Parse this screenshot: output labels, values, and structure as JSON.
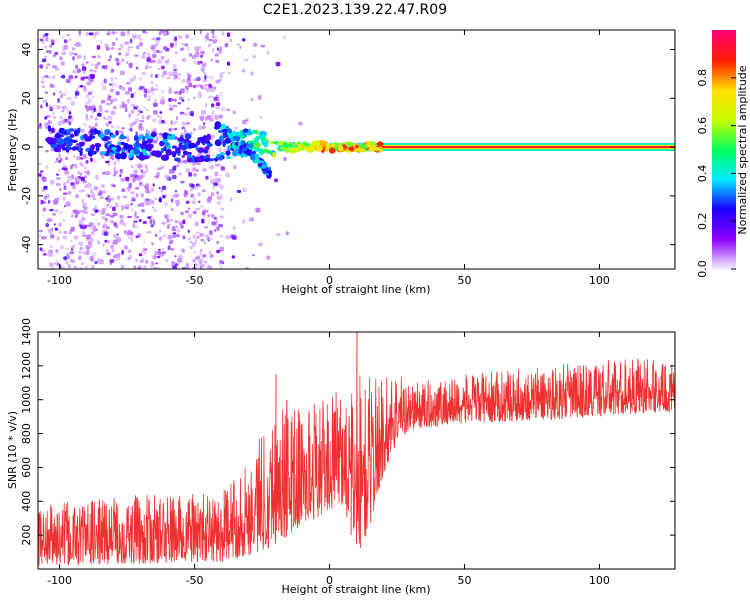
{
  "title": "C2E1.2023.139.22.47.R09",
  "chart_data": [
    {
      "type": "heatmap",
      "xlabel": "Height of straight line (km)",
      "ylabel": "Frequency (Hz)",
      "xlim": [
        -108,
        128
      ],
      "ylim": [
        -50,
        48
      ],
      "xticks": [
        -100,
        -50,
        0,
        50,
        100
      ],
      "yticks": [
        -40,
        -20,
        0,
        20,
        40
      ],
      "colorbar": {
        "label": "Normalized spectral amplitude",
        "range": [
          0,
          1
        ],
        "ticks": [
          0.0,
          0.2,
          0.4,
          0.6,
          0.8
        ],
        "tick_labels": [
          "0.0",
          "0.2",
          "0.4",
          "0.6",
          "0.8"
        ],
        "colormap": [
          "#f3ecff",
          "#8e00ff",
          "#1a00ff",
          "#00e8ff",
          "#00ff60",
          "#c8ff00",
          "#ffe000",
          "#ff2000",
          "#ff0070"
        ]
      },
      "features": [
        {
          "name": "diffuse noise region",
          "x_range": [
            -108,
            -40
          ],
          "freq_range": [
            -50,
            48
          ],
          "amplitude": 0.1
        },
        {
          "name": "main ridge",
          "x": [
            -105,
            -80,
            -60,
            -45,
            -30,
            -15,
            0,
            20
          ],
          "freq": [
            3,
            1,
            0,
            -1,
            2,
            0,
            0,
            0
          ],
          "amplitude": [
            0.3,
            0.35,
            0.35,
            0.3,
            0.5,
            0.7,
            0.9,
            0.95
          ]
        },
        {
          "name": "branch",
          "x": [
            -42,
            -35,
            -28,
            -22
          ],
          "freq": [
            9,
            4,
            -4,
            -11
          ],
          "amplitude": 0.35
        },
        {
          "name": "steady tone",
          "x_range": [
            0,
            128
          ],
          "freq": 0,
          "amplitude": 1.0
        }
      ]
    },
    {
      "type": "line",
      "xlabel": "Height of straight line (km)",
      "ylabel": "SNR (10 * v/v)",
      "xlim": [
        -108,
        128
      ],
      "ylim": [
        0,
        1400
      ],
      "xticks": [
        -100,
        -50,
        0,
        50,
        100
      ],
      "yticks": [
        200,
        400,
        600,
        800,
        1000,
        1200,
        1400
      ],
      "color": "#f03030",
      "envelope": {
        "x": [
          -108,
          -95,
          -80,
          -65,
          -50,
          -40,
          -35,
          -30,
          -25,
          -20,
          -15,
          -10,
          -5,
          0,
          5,
          8,
          10,
          12,
          15,
          20,
          25,
          30,
          50,
          80,
          100,
          115,
          128
        ],
        "low": [
          20,
          20,
          30,
          30,
          40,
          40,
          60,
          80,
          100,
          150,
          200,
          250,
          300,
          350,
          380,
          200,
          150,
          100,
          250,
          550,
          750,
          820,
          860,
          880,
          900,
          920,
          930
        ],
        "high": [
          380,
          400,
          430,
          440,
          450,
          450,
          550,
          650,
          850,
          950,
          1000,
          950,
          1000,
          1000,
          1100,
          1000,
          1400,
          1100,
          1150,
          1150,
          1180,
          1100,
          1150,
          1200,
          1230,
          1260,
          1200
        ]
      },
      "spikes": [
        [
          -20,
          1150
        ],
        [
          10,
          1420
        ],
        [
          8,
          980
        ],
        [
          -16,
          1000
        ]
      ]
    }
  ]
}
